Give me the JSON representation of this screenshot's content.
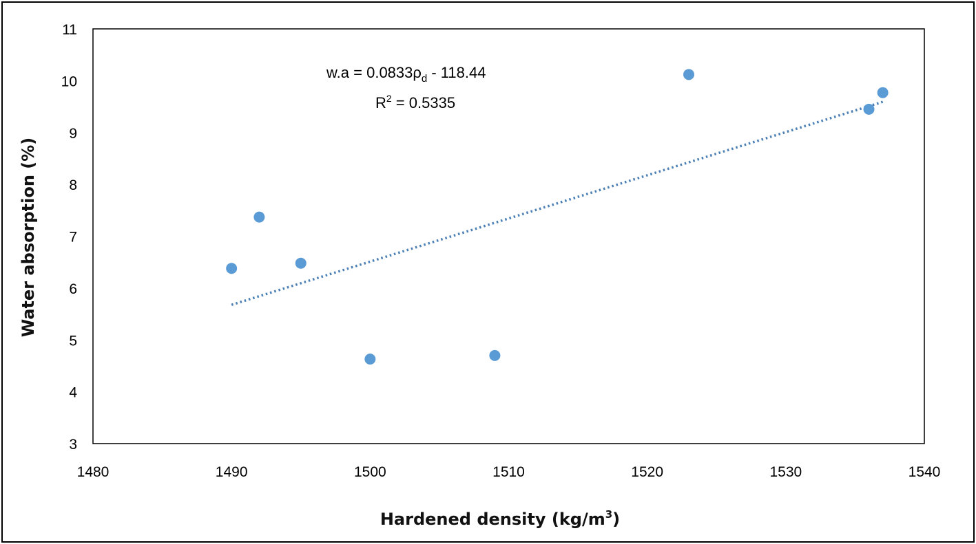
{
  "chart_data": {
    "type": "scatter",
    "xlabel": "Hardened density (kg/m",
    "xlabel_sup": "3",
    "xlabel_end": ")",
    "ylabel": "Water absorption (%)",
    "xlim": [
      1480,
      1540
    ],
    "ylim": [
      3,
      11
    ],
    "xticks": [
      "1480",
      "1490",
      "1500",
      "1510",
      "1520",
      "1530",
      "1540"
    ],
    "yticks": [
      "3",
      "4",
      "5",
      "6",
      "7",
      "8",
      "9",
      "10",
      "11"
    ],
    "grid": false,
    "points": [
      {
        "x": 1490,
        "y": 6.38
      },
      {
        "x": 1492,
        "y": 7.37
      },
      {
        "x": 1495,
        "y": 6.48
      },
      {
        "x": 1500,
        "y": 4.63
      },
      {
        "x": 1509,
        "y": 4.7
      },
      {
        "x": 1523,
        "y": 10.12
      },
      {
        "x": 1536,
        "y": 9.45
      },
      {
        "x": 1537,
        "y": 9.77
      }
    ],
    "trendline": {
      "slope": 0.0833,
      "intercept": -118.44,
      "x_range": [
        1490,
        1537
      ],
      "style": "dotted"
    },
    "annotation": {
      "equation_prefix": "w.a = 0.0833ρ",
      "equation_sub": "d",
      "equation_suffix": "  - 118.44",
      "r2_prefix": "R",
      "r2_sup": "2",
      "r2_suffix": " = 0.5335"
    },
    "colors": {
      "marker": "#5b9bd5",
      "trendline": "#4a7fb5"
    }
  }
}
